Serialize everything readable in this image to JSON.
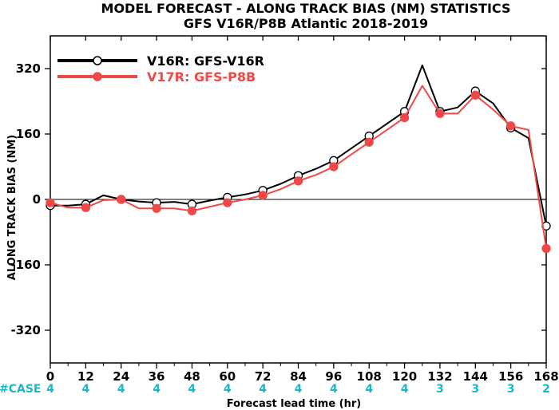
{
  "chart_data": {
    "type": "line",
    "title": "MODEL FORECAST - ALONG TRACK BIAS (NM) STATISTICS",
    "subtitle": "GFS V16R/P8B Atlantic 2018-2019",
    "xlabel": "Forecast lead time (hr)",
    "ylabel": "ALONG TRACK BIAS (NM)",
    "xlim": [
      0,
      168
    ],
    "ylim": [
      -400,
      400
    ],
    "x_ticks": [
      0,
      12,
      24,
      36,
      48,
      60,
      72,
      84,
      96,
      108,
      120,
      132,
      144,
      156,
      168
    ],
    "y_ticks": [
      320,
      160,
      0,
      -160,
      -320
    ],
    "x_tick_labels": [
      "0",
      "12",
      "24",
      "36",
      "48",
      "60",
      "72",
      "84",
      "96",
      "108",
      "120",
      "132",
      "144",
      "156",
      "168"
    ],
    "y_tick_labels": [
      "320",
      "160",
      "0",
      "-160",
      "-320"
    ],
    "grid": false,
    "legend_position": "top-left",
    "case_label": "#CASE",
    "case_counts": [
      "4",
      "4",
      "4",
      "4",
      "4",
      "4",
      "4",
      "4",
      "4",
      "4",
      "4",
      "3",
      "3",
      "3",
      "2"
    ],
    "series": [
      {
        "name": "V16R: GFS-V16R",
        "color": "#000000",
        "marker": "open-circle",
        "x": [
          0,
          6,
          12,
          18,
          24,
          30,
          36,
          42,
          48,
          54,
          60,
          66,
          72,
          78,
          84,
          90,
          96,
          102,
          108,
          114,
          120,
          126,
          132,
          138,
          144,
          150,
          156,
          162,
          168
        ],
        "y": [
          -15,
          -15,
          -12,
          10,
          0,
          -5,
          -8,
          -6,
          -12,
          -3,
          5,
          12,
          22,
          38,
          58,
          75,
          95,
          125,
          155,
          185,
          215,
          328,
          215,
          225,
          265,
          235,
          175,
          150,
          -65
        ],
        "marker_x": [
          0,
          12,
          24,
          36,
          48,
          60,
          72,
          84,
          96,
          108,
          120,
          132,
          144,
          156,
          168
        ],
        "marker_y": [
          -15,
          -12,
          0,
          -8,
          -12,
          5,
          22,
          58,
          95,
          155,
          215,
          215,
          265,
          175,
          -65
        ]
      },
      {
        "name": "V17R: GFS-P8B",
        "color": "#f04848",
        "marker": "filled-circle",
        "x": [
          0,
          6,
          12,
          18,
          24,
          30,
          36,
          42,
          48,
          54,
          60,
          66,
          72,
          78,
          84,
          90,
          96,
          102,
          108,
          114,
          120,
          126,
          132,
          138,
          144,
          150,
          156,
          162,
          168
        ],
        "y": [
          -8,
          -20,
          -20,
          -2,
          0,
          -22,
          -22,
          -22,
          -28,
          -18,
          -8,
          0,
          10,
          25,
          45,
          60,
          80,
          110,
          140,
          170,
          200,
          278,
          210,
          210,
          255,
          220,
          180,
          170,
          -120
        ],
        "marker_x": [
          0,
          12,
          24,
          36,
          48,
          60,
          72,
          84,
          96,
          108,
          120,
          132,
          144,
          156,
          168
        ],
        "marker_y": [
          -8,
          -20,
          0,
          -22,
          -28,
          -8,
          10,
          45,
          80,
          140,
          200,
          210,
          255,
          180,
          -120
        ]
      }
    ]
  }
}
